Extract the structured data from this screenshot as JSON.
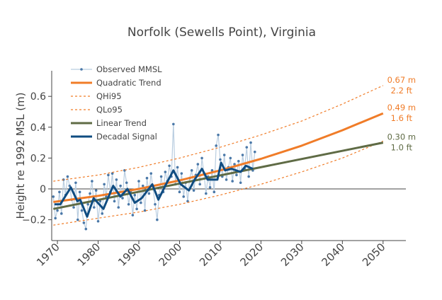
{
  "chart_data": {
    "type": "line",
    "title": "Norfolk (Sewells Point), Virginia",
    "xlabel": "",
    "ylabel": "Height re 1992 MSL (m)",
    "xlim": [
      1968.6,
      2055.6
    ],
    "ylim": [
      -0.335,
      0.766
    ],
    "xticks": [
      1970,
      1980,
      1990,
      2000,
      2010,
      2020,
      2030,
      2040,
      2050
    ],
    "yticks": [
      -0.2,
      0,
      0.2,
      0.4,
      0.6
    ],
    "ytick_labels": [
      "−0.2",
      "0",
      "0.2",
      "0.4",
      "0.6"
    ],
    "grid": false,
    "legend_position": "top-left",
    "colors": {
      "observed": "#4a78a8",
      "observed_line": "#b9cde0",
      "quadratic": "#f07c28",
      "linear": "#5f6b45",
      "decadal": "#0f4c81",
      "zero": "#444444",
      "axis": "#444444"
    },
    "series": [
      {
        "name": "Observed MMSL",
        "style": "line-markers",
        "x": [
          1969.0,
          1969.5,
          1970.0,
          1970.5,
          1971.0,
          1971.5,
          1972.0,
          1972.5,
          1973.0,
          1973.5,
          1974.0,
          1974.5,
          1975.0,
          1975.5,
          1976.0,
          1976.5,
          1977.0,
          1977.5,
          1978.0,
          1978.5,
          1979.0,
          1979.5,
          1980.0,
          1980.5,
          1981.0,
          1981.5,
          1982.0,
          1982.5,
          1983.0,
          1983.5,
          1984.0,
          1984.5,
          1985.0,
          1985.5,
          1986.0,
          1986.5,
          1987.0,
          1987.5,
          1988.0,
          1988.5,
          1989.0,
          1989.5,
          1990.0,
          1990.5,
          1991.0,
          1991.5,
          1992.0,
          1992.5,
          1993.0,
          1993.5,
          1994.0,
          1994.5,
          1995.0,
          1995.5,
          1996.0,
          1996.5,
          1997.0,
          1997.5,
          1998.0,
          1998.5,
          1999.0,
          1999.5,
          2000.0,
          2000.5,
          2001.0,
          2001.5,
          2002.0,
          2002.5,
          2003.0,
          2003.5,
          2004.0,
          2004.5,
          2005.0,
          2005.5,
          2006.0,
          2006.5,
          2007.0,
          2007.5,
          2008.0,
          2008.5,
          2009.0,
          2009.5,
          2010.0,
          2010.5,
          2011.0,
          2011.5,
          2012.0,
          2012.5,
          2013.0,
          2013.5,
          2014.0,
          2014.5,
          2015.0,
          2015.5,
          2016.0,
          2016.5,
          2017.0,
          2017.5,
          2018.0,
          2018.5
        ],
        "y": [
          -0.05,
          -0.19,
          -0.14,
          -0.02,
          -0.16,
          0.06,
          -0.04,
          0.08,
          0.02,
          -0.07,
          -0.12,
          0.04,
          -0.2,
          -0.02,
          -0.14,
          -0.22,
          -0.26,
          -0.1,
          -0.03,
          0.05,
          -0.12,
          -0.01,
          -0.21,
          -0.08,
          -0.16,
          0.03,
          -0.05,
          0.09,
          -0.02,
          0.1,
          -0.08,
          0.06,
          -0.12,
          0.02,
          -0.06,
          0.12,
          0.04,
          -0.1,
          -0.02,
          -0.17,
          -0.04,
          -0.13,
          0.05,
          -0.09,
          0.02,
          -0.14,
          0.07,
          -0.03,
          0.1,
          0.0,
          -0.1,
          -0.2,
          -0.04,
          0.08,
          -0.02,
          0.11,
          0.05,
          0.15,
          0.08,
          0.42,
          0.03,
          0.14,
          -0.02,
          0.1,
          -0.05,
          0.04,
          -0.08,
          0.07,
          0.12,
          -0.01,
          0.09,
          0.16,
          0.03,
          0.2,
          0.1,
          -0.03,
          0.08,
          0.01,
          0.12,
          -0.02,
          0.28,
          0.35,
          0.19,
          0.08,
          0.22,
          0.06,
          0.14,
          0.2,
          0.05,
          0.16,
          0.09,
          0.18,
          0.04,
          0.22,
          0.13,
          0.27,
          0.08,
          0.3,
          0.12,
          0.24
        ]
      },
      {
        "name": "Quadratic Trend",
        "style": "solid",
        "x": [
          1969,
          1980,
          1990,
          2000,
          2010,
          2020,
          2030,
          2040,
          2050
        ],
        "y": [
          -0.085,
          -0.045,
          0.0,
          0.055,
          0.12,
          0.195,
          0.28,
          0.38,
          0.49
        ]
      },
      {
        "name": "QHi95",
        "style": "dashed",
        "x": [
          1969,
          1980,
          1990,
          2000,
          2010,
          2020,
          2030,
          2040,
          2050
        ],
        "y": [
          0.05,
          0.09,
          0.14,
          0.2,
          0.27,
          0.35,
          0.44,
          0.55,
          0.67
        ]
      },
      {
        "name": "QLo95",
        "style": "dashed",
        "x": [
          1969,
          1980,
          1990,
          2000,
          2010,
          2020,
          2030,
          2040,
          2050
        ],
        "y": [
          -0.235,
          -0.19,
          -0.15,
          -0.1,
          -0.04,
          0.03,
          0.11,
          0.2,
          0.31
        ]
      },
      {
        "name": "Linear Trend",
        "style": "solid",
        "x": [
          1969,
          2050
        ],
        "y": [
          -0.13,
          0.3
        ]
      },
      {
        "name": "Decadal Signal",
        "style": "solid",
        "x": [
          1969.3,
          1970.7,
          1973.3,
          1974.9,
          1975.6,
          1977.3,
          1978.9,
          1981.3,
          1983.7,
          1985.5,
          1987.2,
          1989.0,
          1990.7,
          1993.3,
          1994.8,
          1996.5,
          1998.5,
          2000.3,
          2002.3,
          2003.7,
          2005.5,
          2006.9,
          2009.3,
          2010.2,
          2011.2,
          2012.8,
          2015.0,
          2016.3,
          2018.0
        ],
        "y": [
          -0.1,
          -0.1,
          0.01,
          -0.08,
          -0.07,
          -0.18,
          -0.06,
          -0.13,
          0.02,
          -0.05,
          0.0,
          -0.09,
          -0.06,
          0.03,
          -0.07,
          0.02,
          0.12,
          0.03,
          -0.01,
          0.06,
          0.13,
          0.06,
          0.06,
          0.17,
          0.12,
          0.13,
          0.11,
          0.15,
          0.13
        ]
      }
    ],
    "annotations": [
      {
        "series": "QHi95",
        "x": 2050,
        "y": 0.67,
        "lines": [
          "0.67 m",
          "2.2 ft"
        ],
        "color": "#f07c28"
      },
      {
        "series": "Quadratic Trend",
        "x": 2050,
        "y": 0.49,
        "lines": [
          "0.49 m",
          "1.6 ft"
        ],
        "color": "#f07c28"
      },
      {
        "series": "Linear Trend",
        "x": 2050,
        "y": 0.3,
        "lines": [
          "0.30 m",
          "1.0 ft"
        ],
        "color": "#5f6b45"
      }
    ]
  }
}
